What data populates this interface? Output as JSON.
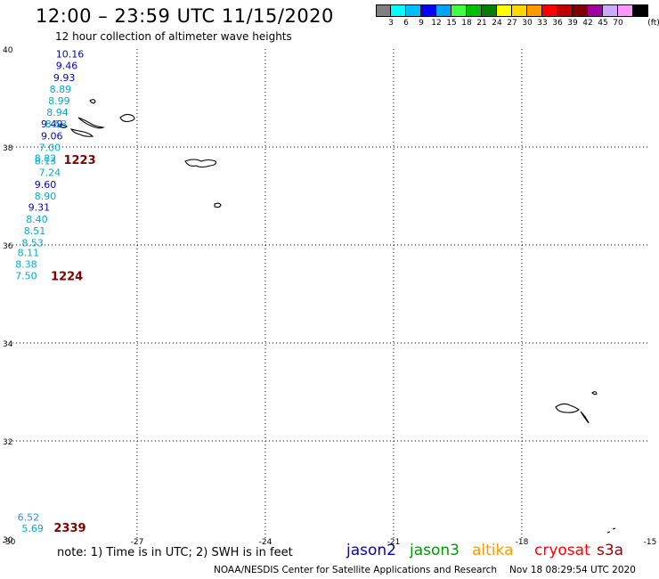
{
  "header": {
    "title": "12:00 – 23:59 UTC 11/15/2020",
    "subtitle": "12 hour collection of altimeter wave heights"
  },
  "colorbar": {
    "colors": [
      "#808080",
      "#00ffff",
      "#00bfff",
      "#0000ff",
      "#00a5ff",
      "#40ff40",
      "#00c000",
      "#008000",
      "#ffff00",
      "#ffd700",
      "#ff9900",
      "#ff0000",
      "#c00000",
      "#800000",
      "#a000a0",
      "#ccaaff",
      "#ff99ff",
      "#000000"
    ],
    "labels": [
      "3",
      "6",
      "9",
      "12",
      "15",
      "18",
      "21",
      "24",
      "27",
      "30",
      "33",
      "36",
      "39",
      "42",
      "45",
      "70"
    ],
    "unit": "(ft)"
  },
  "map": {
    "lon_range": [
      -30,
      -15
    ],
    "lat_range": [
      30,
      40
    ],
    "lon_ticks": [
      "-30",
      "-27",
      "-24",
      "-21",
      "-18",
      "-15"
    ],
    "lat_ticks": [
      "40",
      "38",
      "36",
      "34",
      "32",
      "30"
    ],
    "grid_lons": [
      -27,
      -24,
      -21,
      -18
    ],
    "grid_lats": [
      38,
      36,
      34,
      32
    ]
  },
  "observations": [
    {
      "value": "10.16",
      "color": "#0000cc",
      "lon": -28.9,
      "lat": 39.9
    },
    {
      "value": "9.46",
      "color": "#0000cc",
      "lon": -28.9,
      "lat": 39.66
    },
    {
      "value": "9.93",
      "color": "#0000cc",
      "lon": -28.96,
      "lat": 39.42
    },
    {
      "value": "8.89",
      "color": "#00aacc",
      "lon": -29.05,
      "lat": 39.18
    },
    {
      "value": "8.99",
      "color": "#00aacc",
      "lon": -29.08,
      "lat": 38.95
    },
    {
      "value": "8.94",
      "color": "#00aacc",
      "lon": -29.12,
      "lat": 38.71
    },
    {
      "value": "9.49",
      "color": "#0000cc",
      "lon": -29.25,
      "lat": 38.47
    },
    {
      "value": "8.53",
      "color": "#00aacc",
      "lon": -29.15,
      "lat": 38.47
    },
    {
      "value": "9.06",
      "color": "#0000cc",
      "lon": -29.25,
      "lat": 38.23
    },
    {
      "value": "7.00",
      "color": "#00aacc",
      "lon": -29.3,
      "lat": 37.99
    },
    {
      "value": "8.82",
      "color": "#00aacc",
      "lon": -29.4,
      "lat": 37.77
    },
    {
      "value": "8.13",
      "color": "#00aacc",
      "lon": -29.4,
      "lat": 37.72
    },
    {
      "value": "7.24",
      "color": "#00aacc",
      "lon": -29.3,
      "lat": 37.48
    },
    {
      "value": "9.60",
      "color": "#0000cc",
      "lon": -29.4,
      "lat": 37.24
    },
    {
      "value": "8.90",
      "color": "#00aacc",
      "lon": -29.4,
      "lat": 37.0
    },
    {
      "value": "9.31",
      "color": "#0000cc",
      "lon": -29.55,
      "lat": 36.77
    },
    {
      "value": "8.40",
      "color": "#00aacc",
      "lon": -29.6,
      "lat": 36.53
    },
    {
      "value": "8.51",
      "color": "#00aacc",
      "lon": -29.65,
      "lat": 36.29
    },
    {
      "value": "8.53",
      "color": "#00aacc",
      "lon": -29.7,
      "lat": 36.05
    },
    {
      "value": "8.11",
      "color": "#00aacc",
      "lon": -29.8,
      "lat": 35.85
    },
    {
      "value": "8.38",
      "color": "#00aacc",
      "lon": -29.85,
      "lat": 35.61
    },
    {
      "value": "7.50",
      "color": "#00aacc",
      "lon": -29.85,
      "lat": 35.37
    },
    {
      "value": "6.52",
      "color": "#00aacc",
      "lon": -29.8,
      "lat": 30.45
    },
    {
      "value": "5.69",
      "color": "#00aacc",
      "lon": -29.7,
      "lat": 30.22
    }
  ],
  "time_labels": [
    {
      "value": "1223",
      "color": "#800000",
      "lon": -28.72,
      "lat": 37.75
    },
    {
      "value": "1224",
      "color": "#800000",
      "lon": -29.02,
      "lat": 35.37
    },
    {
      "value": "2339",
      "color": "#800000",
      "lon": -28.95,
      "lat": 30.24
    }
  ],
  "note": "note:  1) Time is in UTC;  2) SWH is in feet",
  "satellites": [
    {
      "name": "jason2",
      "color": "#0000cc"
    },
    {
      "name": "jason3",
      "color": "#009900"
    },
    {
      "name": "altika",
      "color": "#ff9900"
    },
    {
      "name": "cryosat",
      "color": "#ff0000"
    },
    {
      "name": "s3a",
      "color": "#990000"
    }
  ],
  "footer": {
    "credit": "NOAA/NESDIS Center for Satellite Applications and Research",
    "timestamp": "Nov 18 08:29:54 UTC 2020"
  }
}
